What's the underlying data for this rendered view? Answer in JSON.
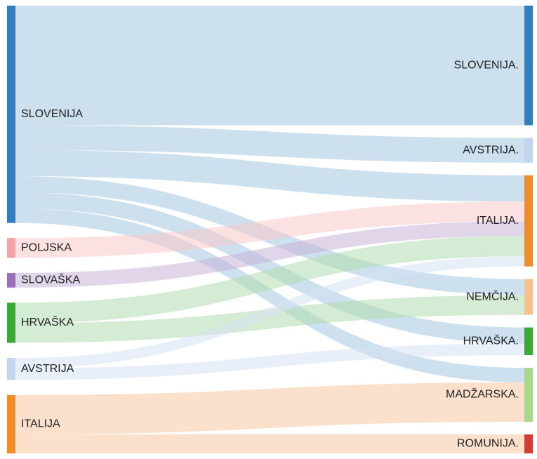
{
  "chart_data": {
    "type": "sankey",
    "title": "",
    "colors": {
      "slovenia": "#2f7fc1",
      "slovenia_link": "#a4c7e0",
      "poland": "#f4a3a6",
      "slovakia": "#9c6fba",
      "croatia": "#3aaa35",
      "austria": "#c3d5ee",
      "italy": "#f28c28",
      "germany": "#f9c08c",
      "hungary": "#a5d88b",
      "romania": "#d83a36"
    },
    "sources": [
      {
        "id": "s_slo",
        "label": "SLOVENIJA",
        "color": "#2f7fc1"
      },
      {
        "id": "s_pol",
        "label": "POLJSKA",
        "color": "#f4a3a6"
      },
      {
        "id": "s_svk",
        "label": "SLOVAŠKA",
        "color": "#9c6fba"
      },
      {
        "id": "s_hrv",
        "label": "HRVAŠKA",
        "color": "#3aaa35"
      },
      {
        "id": "s_aut",
        "label": "AVSTRIJA",
        "color": "#c3d5ee"
      },
      {
        "id": "s_ita",
        "label": "ITALIJA",
        "color": "#f28c28"
      }
    ],
    "targets": [
      {
        "id": "t_slo",
        "label": "SLOVENIJA.",
        "color": "#2f7fc1"
      },
      {
        "id": "t_aut",
        "label": "AVSTRIJA.",
        "color": "#c3d5ee"
      },
      {
        "id": "t_ita",
        "label": "ITALIJA.",
        "color": "#f28c28"
      },
      {
        "id": "t_ger",
        "label": "NEMČIJA.",
        "color": "#f9c08c"
      },
      {
        "id": "t_hrv",
        "label": "HRVAŠKA.",
        "color": "#3aaa35"
      },
      {
        "id": "t_hun",
        "label": "MADŽARSKA.",
        "color": "#a5d88b"
      },
      {
        "id": "t_rom",
        "label": "ROMUNIJA.",
        "color": "#d83a36"
      }
    ],
    "links": [
      {
        "source": "s_slo",
        "target": "t_slo",
        "value": 164,
        "color": "#a4c7e0"
      },
      {
        "source": "s_slo",
        "target": "t_aut",
        "value": 34,
        "color": "#a4c7e0"
      },
      {
        "source": "s_slo",
        "target": "t_ita",
        "value": 36,
        "color": "#a4c7e0"
      },
      {
        "source": "s_slo",
        "target": "t_ger",
        "value": 22,
        "color": "#a4c7e0"
      },
      {
        "source": "s_slo",
        "target": "t_hrv",
        "value": 22,
        "color": "#a4c7e0"
      },
      {
        "source": "s_slo",
        "target": "t_hun",
        "value": 20,
        "color": "#a4c7e0"
      },
      {
        "source": "s_pol",
        "target": "t_ita",
        "value": 27,
        "color": "#f8c9cb"
      },
      {
        "source": "s_svk",
        "target": "t_ita",
        "value": 20,
        "color": "#c9b3d9"
      },
      {
        "source": "s_hrv",
        "target": "t_ita",
        "value": 28,
        "color": "#b3ddb0"
      },
      {
        "source": "s_hrv",
        "target": "t_ger",
        "value": 27,
        "color": "#b3ddb0"
      },
      {
        "source": "s_aut",
        "target": "t_ita",
        "value": 14,
        "color": "#d5e2f3"
      },
      {
        "source": "s_aut",
        "target": "t_hrv",
        "value": 16,
        "color": "#d5e2f3"
      },
      {
        "source": "s_ita",
        "target": "t_hun",
        "value": 54,
        "color": "#f8c9a0"
      },
      {
        "source": "s_ita",
        "target": "t_rom",
        "value": 26,
        "color": "#f8c9a0"
      }
    ]
  }
}
